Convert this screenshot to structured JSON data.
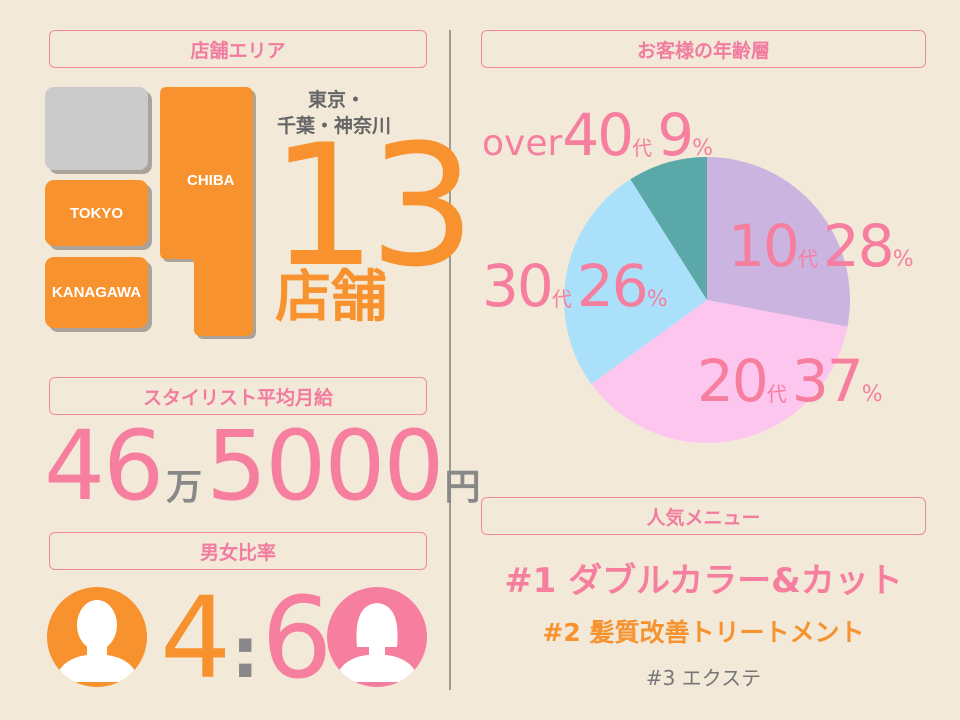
{
  "store_area": {
    "header": "店舗エリア",
    "regions": [
      "TOKYO",
      "KANAGAWA",
      "CHIBA"
    ],
    "region_line1": "東京・",
    "region_line2": "千葉・神奈川",
    "count": "13",
    "count_unit": "店舗"
  },
  "salary": {
    "header": "スタイリスト平均月給",
    "man_value": "46",
    "man_unit": "万",
    "value": "5000",
    "yen_unit": "円"
  },
  "gender": {
    "header": "男女比率",
    "male": "4",
    "separator": ":",
    "female": "6"
  },
  "age": {
    "header": "お客様の年齢層",
    "labels": [
      {
        "prefix": "",
        "num": "10",
        "unit": "代",
        "pct": "28",
        "pct_sign": "%"
      },
      {
        "prefix": "",
        "num": "20",
        "unit": "代",
        "pct": "37",
        "pct_sign": "%"
      },
      {
        "prefix": "",
        "num": "30",
        "unit": "代",
        "pct": "26",
        "pct_sign": "%"
      },
      {
        "prefix": "over",
        "num": "40",
        "unit": "代",
        "pct": "9",
        "pct_sign": "%"
      }
    ]
  },
  "chart_data": {
    "type": "pie",
    "categories": [
      "10代",
      "20代",
      "30代",
      "over40代"
    ],
    "values": [
      28,
      37,
      26,
      9
    ],
    "colors": [
      "#cbb4e0",
      "#fdc6ee",
      "#abe0fb",
      "#5aa8a8"
    ]
  },
  "menu": {
    "header": "人気メニュー",
    "items": [
      "#1 ダブルカラー&カット",
      "#2 髪質改善トリートメント",
      "#3 エクステ"
    ]
  },
  "colors": {
    "background": "#f2e9d8",
    "pink": "#f67f9f",
    "orange": "#f7922e",
    "grey": "#888888"
  }
}
